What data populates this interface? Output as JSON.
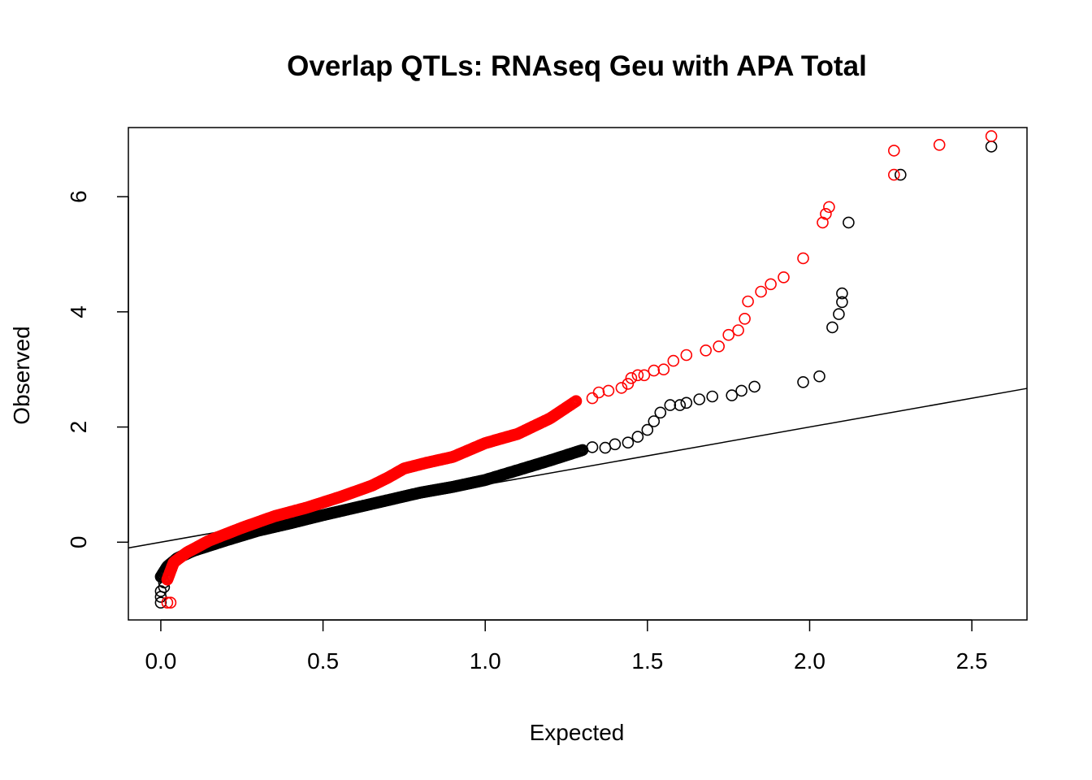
{
  "chart_data": {
    "type": "scatter",
    "title": "Overlap QTLs: RNAseq Geu with APA Total",
    "xlabel": "Expected",
    "ylabel": "Observed",
    "xlim": [
      -0.1,
      2.67
    ],
    "ylim": [
      -1.35,
      7.2
    ],
    "x_ticks": [
      0.0,
      0.5,
      1.0,
      1.5,
      2.0,
      2.5
    ],
    "x_tick_labels": [
      "0.0",
      "0.5",
      "1.0",
      "1.5",
      "2.0",
      "2.5"
    ],
    "y_ticks": [
      0,
      2,
      4,
      6
    ],
    "y_tick_labels": [
      "0",
      "2",
      "4",
      "6"
    ],
    "reference_line": {
      "intercept": 0,
      "slope": 1
    },
    "series": [
      {
        "name": "black",
        "color": "#000000",
        "curve": [
          [
            0.0,
            -0.6
          ],
          [
            0.02,
            -0.42
          ],
          [
            0.05,
            -0.28
          ],
          [
            0.1,
            -0.15
          ],
          [
            0.2,
            0.03
          ],
          [
            0.3,
            0.2
          ],
          [
            0.4,
            0.33
          ],
          [
            0.5,
            0.47
          ],
          [
            0.6,
            0.6
          ],
          [
            0.7,
            0.73
          ],
          [
            0.8,
            0.86
          ],
          [
            0.9,
            0.96
          ],
          [
            1.0,
            1.08
          ],
          [
            1.1,
            1.25
          ],
          [
            1.2,
            1.42
          ],
          [
            1.3,
            1.6
          ]
        ],
        "tail": [
          [
            0.0,
            -1.05
          ],
          [
            0.0,
            -0.95
          ],
          [
            0.0,
            -0.85
          ],
          [
            0.01,
            -0.78
          ],
          [
            0.01,
            -0.7
          ],
          [
            1.33,
            1.65
          ],
          [
            1.37,
            1.64
          ],
          [
            1.4,
            1.7
          ],
          [
            1.44,
            1.73
          ],
          [
            1.47,
            1.83
          ],
          [
            1.5,
            1.95
          ],
          [
            1.52,
            2.1
          ],
          [
            1.54,
            2.25
          ],
          [
            1.57,
            2.38
          ],
          [
            1.6,
            2.38
          ],
          [
            1.62,
            2.42
          ],
          [
            1.66,
            2.48
          ],
          [
            1.7,
            2.53
          ],
          [
            1.76,
            2.55
          ],
          [
            1.79,
            2.63
          ],
          [
            1.83,
            2.7
          ],
          [
            1.98,
            2.78
          ],
          [
            2.03,
            2.88
          ],
          [
            2.07,
            3.73
          ],
          [
            2.09,
            3.96
          ],
          [
            2.1,
            4.17
          ],
          [
            2.1,
            4.32
          ],
          [
            2.12,
            5.55
          ],
          [
            2.28,
            6.38
          ],
          [
            2.56,
            6.87
          ]
        ]
      },
      {
        "name": "red",
        "color": "#ff0000",
        "curve": [
          [
            0.02,
            -0.65
          ],
          [
            0.04,
            -0.35
          ],
          [
            0.08,
            -0.18
          ],
          [
            0.15,
            0.03
          ],
          [
            0.25,
            0.25
          ],
          [
            0.35,
            0.45
          ],
          [
            0.45,
            0.6
          ],
          [
            0.55,
            0.78
          ],
          [
            0.65,
            0.98
          ],
          [
            0.7,
            1.12
          ],
          [
            0.75,
            1.28
          ],
          [
            0.82,
            1.38
          ],
          [
            0.9,
            1.48
          ],
          [
            1.0,
            1.72
          ],
          [
            1.1,
            1.88
          ],
          [
            1.2,
            2.15
          ],
          [
            1.28,
            2.45
          ]
        ],
        "tail": [
          [
            0.02,
            -1.05
          ],
          [
            0.03,
            -1.05
          ],
          [
            1.33,
            2.5
          ],
          [
            1.35,
            2.6
          ],
          [
            1.38,
            2.63
          ],
          [
            1.42,
            2.68
          ],
          [
            1.44,
            2.75
          ],
          [
            1.45,
            2.85
          ],
          [
            1.47,
            2.9
          ],
          [
            1.49,
            2.9
          ],
          [
            1.52,
            2.98
          ],
          [
            1.55,
            3.0
          ],
          [
            1.58,
            3.15
          ],
          [
            1.62,
            3.25
          ],
          [
            1.68,
            3.33
          ],
          [
            1.72,
            3.4
          ],
          [
            1.75,
            3.6
          ],
          [
            1.78,
            3.68
          ],
          [
            1.8,
            3.88
          ],
          [
            1.81,
            4.18
          ],
          [
            1.85,
            4.35
          ],
          [
            1.88,
            4.48
          ],
          [
            1.92,
            4.6
          ],
          [
            1.98,
            4.93
          ],
          [
            2.04,
            5.55
          ],
          [
            2.05,
            5.7
          ],
          [
            2.06,
            5.82
          ],
          [
            2.26,
            6.38
          ],
          [
            2.26,
            6.8
          ],
          [
            2.4,
            6.9
          ],
          [
            2.56,
            7.05
          ]
        ]
      }
    ]
  }
}
